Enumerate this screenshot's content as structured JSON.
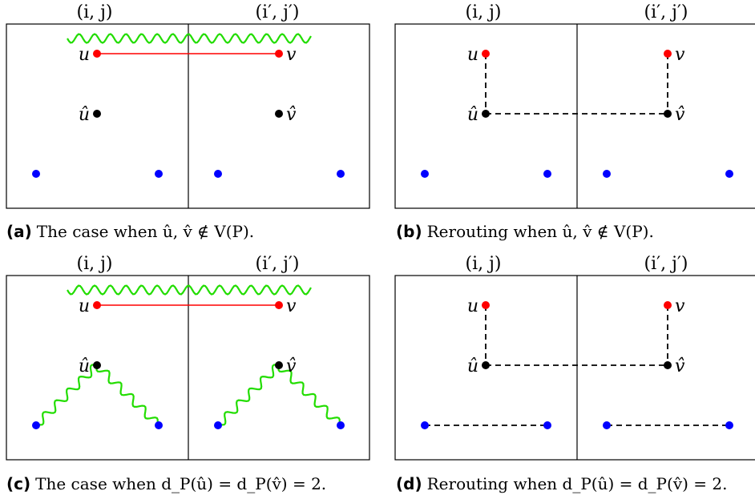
{
  "colors": {
    "frame": "#000000",
    "path_green": "#22dd00",
    "edge_red": "#ff0000",
    "vertex_red": "#ff0000",
    "vertex_black": "#000000",
    "vertex_blue": "#0000ff",
    "reroute_dashed": "#000000"
  },
  "cell_labels": {
    "left": "(i, j)",
    "right": "(i′, j′)"
  },
  "vertex_labels": {
    "u": "u",
    "v": "v",
    "u_hat": "û",
    "v_hat": "v̂"
  },
  "panels": [
    {
      "id": "a",
      "letter": "(a)",
      "caption": "The case when û, v̂ ∉ V(P).",
      "variant": "case",
      "with_hat_paths": false
    },
    {
      "id": "b",
      "letter": "(b)",
      "caption": "Rerouting when û, v̂ ∉ V(P).",
      "variant": "reroute",
      "with_blue_edges": false
    },
    {
      "id": "c",
      "letter": "(c)",
      "caption": "The case when d_P(û) = d_P(v̂) = 2.",
      "variant": "case",
      "with_hat_paths": true
    },
    {
      "id": "d",
      "letter": "(d)",
      "caption": "Rerouting when d_P(û) = d_P(v̂) = 2.",
      "variant": "reroute",
      "with_blue_edges": true
    }
  ]
}
